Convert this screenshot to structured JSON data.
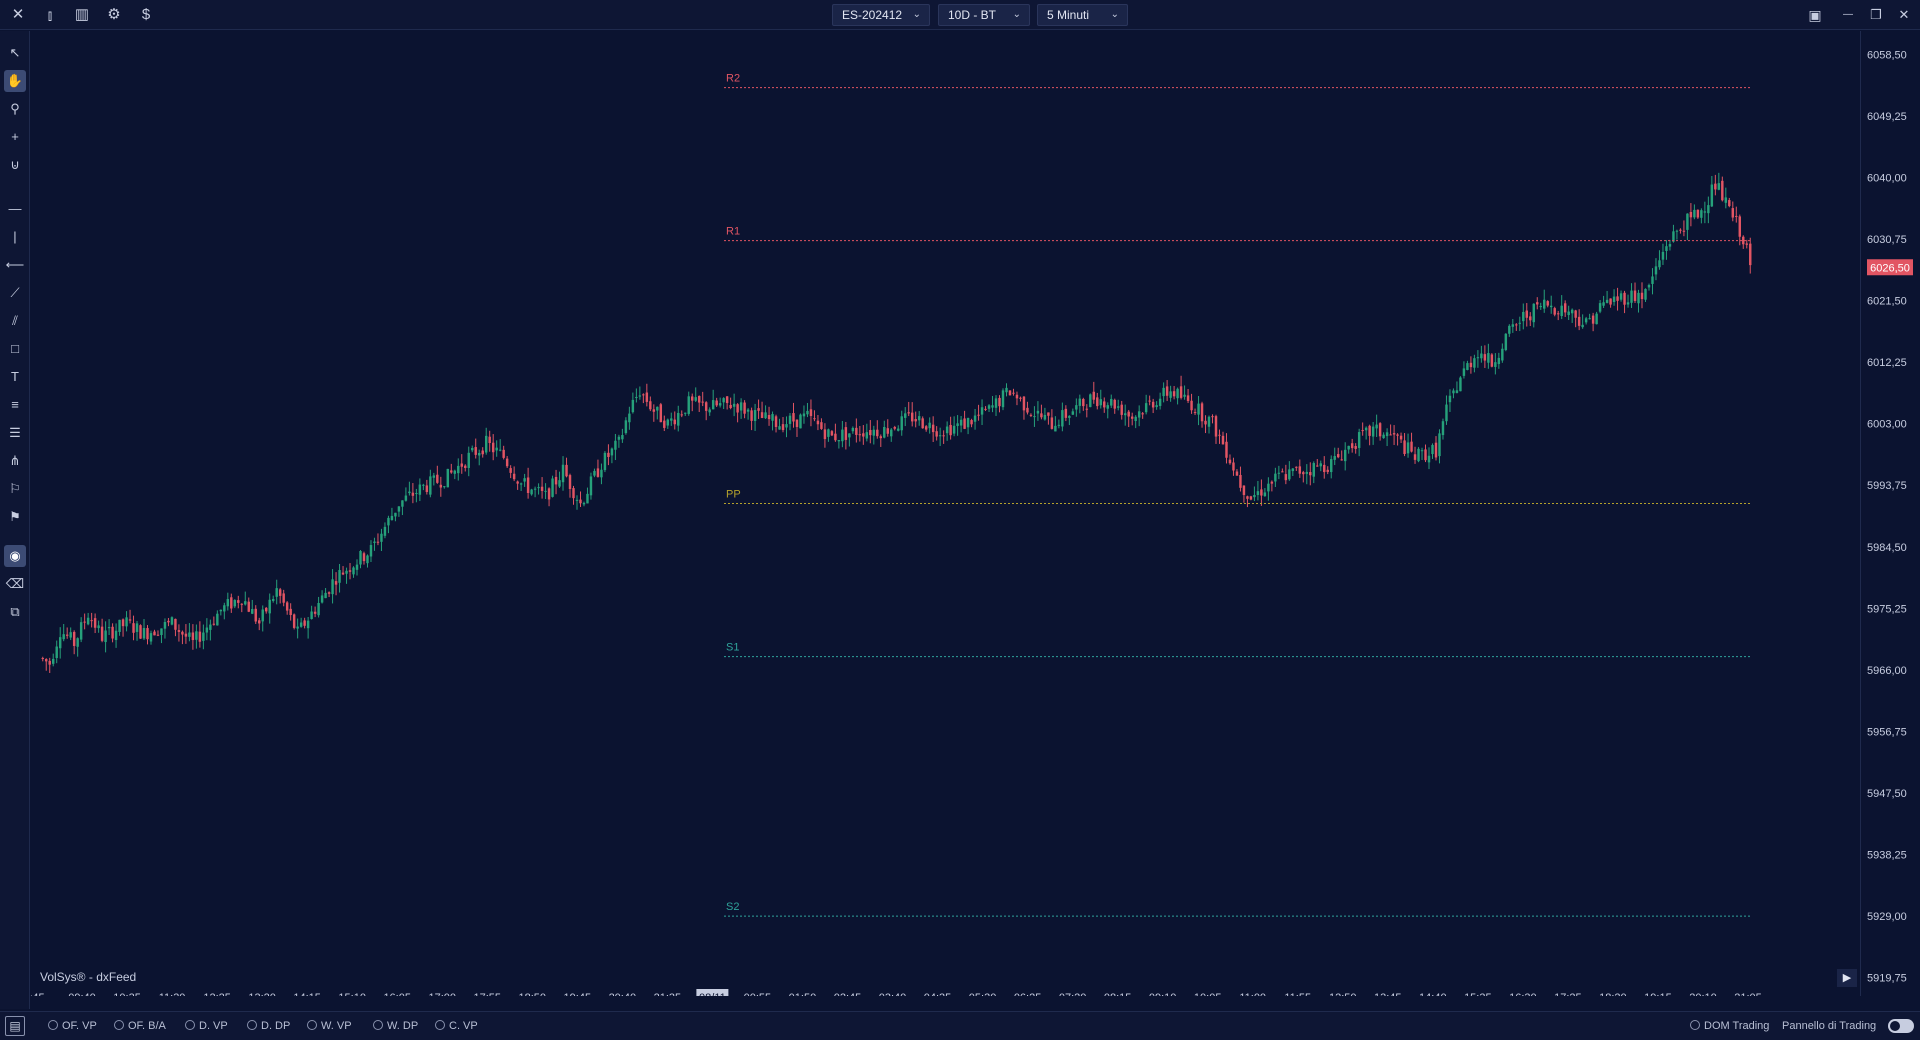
{
  "toolbar": {
    "symbol": "ES-202412",
    "range": "10D - BT",
    "timeframe": "5 Minuti"
  },
  "icons": {
    "close": "✕",
    "candles": "⫾",
    "bars": "▥",
    "settings": "⚙",
    "dollar": "$",
    "window_toggle": "▣",
    "minimize": "—",
    "restore": "❐",
    "window_close": "✕"
  },
  "left_tools": [
    "pointer-icon",
    "hand-icon",
    "zoom-icon",
    "crosshair-icon",
    "magnet-icon",
    "horizontal-line-icon",
    "vertical-line-icon",
    "ray-icon",
    "trend-line-icon",
    "channel-icon",
    "rectangle-icon",
    "text-icon",
    "fib-icon",
    "lines-icon",
    "pitchfork-icon",
    "position-icon",
    "volume-icon",
    "eye-icon",
    "eraser-icon",
    "layers-icon"
  ],
  "colors": {
    "up": "#26a17b",
    "down": "#e25563",
    "r_lines": "#e25563",
    "pp_line": "#b4a12c",
    "s_lines": "#2fa39a",
    "price_tag": "#e25563"
  },
  "watermark": "VolSys® - dxFeed",
  "chart_data": {
    "type": "candlestick",
    "interval": "5 Minuti",
    "ylim": [
      5917,
      6062
    ],
    "y_ticks": [
      "6058,50",
      "6049,25",
      "6040,00",
      "6030,75",
      "6021,50",
      "6012,25",
      "6003,00",
      "5993,75",
      "5984,50",
      "5975,25",
      "5966,00",
      "5956,75",
      "5947,50",
      "5938,25",
      "5929,00",
      "5919,75"
    ],
    "x_ticks": [
      ":45",
      "09:40",
      "10:35",
      "11:30",
      "12:25",
      "13:20",
      "14:15",
      "15:10",
      "16:05",
      "17:00",
      "17:55",
      "18:50",
      "19:45",
      "20:40",
      "21:35",
      "08/11",
      "00:55",
      "01:50",
      "02:45",
      "03:40",
      "04:35",
      "05:30",
      "06:25",
      "07:20",
      "08:15",
      "09:10",
      "10:05",
      "11:00",
      "11:55",
      "12:50",
      "13:45",
      "14:40",
      "15:35",
      "16:30",
      "17:25",
      "18:20",
      "19:15",
      "20:10",
      "21:05"
    ],
    "x_tick_highlight": "08/11",
    "last_price": "6026,50",
    "pivot_levels": [
      {
        "label": "R2",
        "value": 6053.5
      },
      {
        "label": "R1",
        "value": 6030.5
      },
      {
        "label": "PP",
        "value": 5991.0
      },
      {
        "label": "S1",
        "value": 5968.0
      },
      {
        "label": "S2",
        "value": 5929.0
      }
    ],
    "path": [
      [
        0,
        5967.8
      ],
      [
        3,
        5967
      ],
      [
        6,
        5972
      ],
      [
        10,
        5970
      ],
      [
        14,
        5974.5
      ],
      [
        18,
        5971
      ],
      [
        25,
        5973
      ],
      [
        30,
        5971.5
      ],
      [
        38,
        5973
      ],
      [
        44,
        5970
      ],
      [
        52,
        5975
      ],
      [
        58,
        5977
      ],
      [
        63,
        5973
      ],
      [
        68,
        5978
      ],
      [
        74,
        5971.5
      ],
      [
        80,
        5976
      ],
      [
        85,
        5980
      ],
      [
        95,
        5984
      ],
      [
        103,
        5991
      ],
      [
        110,
        5993.5
      ],
      [
        117,
        5995
      ],
      [
        123,
        5998
      ],
      [
        128,
        6000
      ],
      [
        133,
        5998
      ],
      [
        138,
        5994
      ],
      [
        145,
        5992
      ],
      [
        150,
        5996
      ],
      [
        155,
        5991
      ],
      [
        161,
        5997
      ],
      [
        166,
        6000
      ],
      [
        169,
        6005
      ],
      [
        172,
        6008
      ],
      [
        176,
        6005
      ],
      [
        180,
        6003
      ],
      [
        186,
        6006
      ],
      [
        192,
        6005.5
      ],
      [
        199,
        6006
      ],
      [
        206,
        6004
      ],
      [
        212,
        6003
      ],
      [
        220,
        6004
      ],
      [
        227,
        6001
      ],
      [
        235,
        6002
      ],
      [
        242,
        6002
      ],
      [
        250,
        6004
      ],
      [
        258,
        6002
      ],
      [
        265,
        6003
      ],
      [
        272,
        6005
      ],
      [
        278,
        6008
      ],
      [
        284,
        6005
      ],
      [
        290,
        6003
      ],
      [
        296,
        6005
      ],
      [
        302,
        6007
      ],
      [
        308,
        6006
      ],
      [
        313,
        6004
      ],
      [
        318,
        6006
      ],
      [
        324,
        6008
      ],
      [
        330,
        6006
      ],
      [
        336,
        6003
      ],
      [
        340,
        5999
      ],
      [
        344,
        5994
      ],
      [
        347,
        5992
      ],
      [
        350,
        5993
      ],
      [
        355,
        5995
      ],
      [
        362,
        5996
      ],
      [
        370,
        5997
      ],
      [
        376,
        6000
      ],
      [
        382,
        6002
      ],
      [
        388,
        6001
      ],
      [
        394,
        5998
      ],
      [
        400,
        5999
      ],
      [
        403,
        6005
      ],
      [
        407,
        6010
      ],
      [
        412,
        6014
      ],
      [
        416,
        6012
      ],
      [
        420,
        6016
      ],
      [
        425,
        6019
      ],
      [
        431,
        6021
      ],
      [
        438,
        6020
      ],
      [
        443,
        6018
      ],
      [
        448,
        6021
      ],
      [
        453,
        6022
      ],
      [
        460,
        6022.5
      ],
      [
        466,
        6030
      ],
      [
        471,
        6033
      ],
      [
        476,
        6035
      ],
      [
        480,
        6039
      ],
      [
        484,
        6035
      ],
      [
        488,
        6031
      ],
      [
        490,
        6026.5
      ]
    ],
    "candle_count": 490
  },
  "indicators": [
    "OF. VP",
    "OF. B/A",
    "D. VP",
    "D. DP",
    "W. VP",
    "W. DP",
    "C. VP"
  ],
  "bottom_right": {
    "dom_trading": "DOM Trading",
    "trading_panel": "Pannello di Trading"
  }
}
